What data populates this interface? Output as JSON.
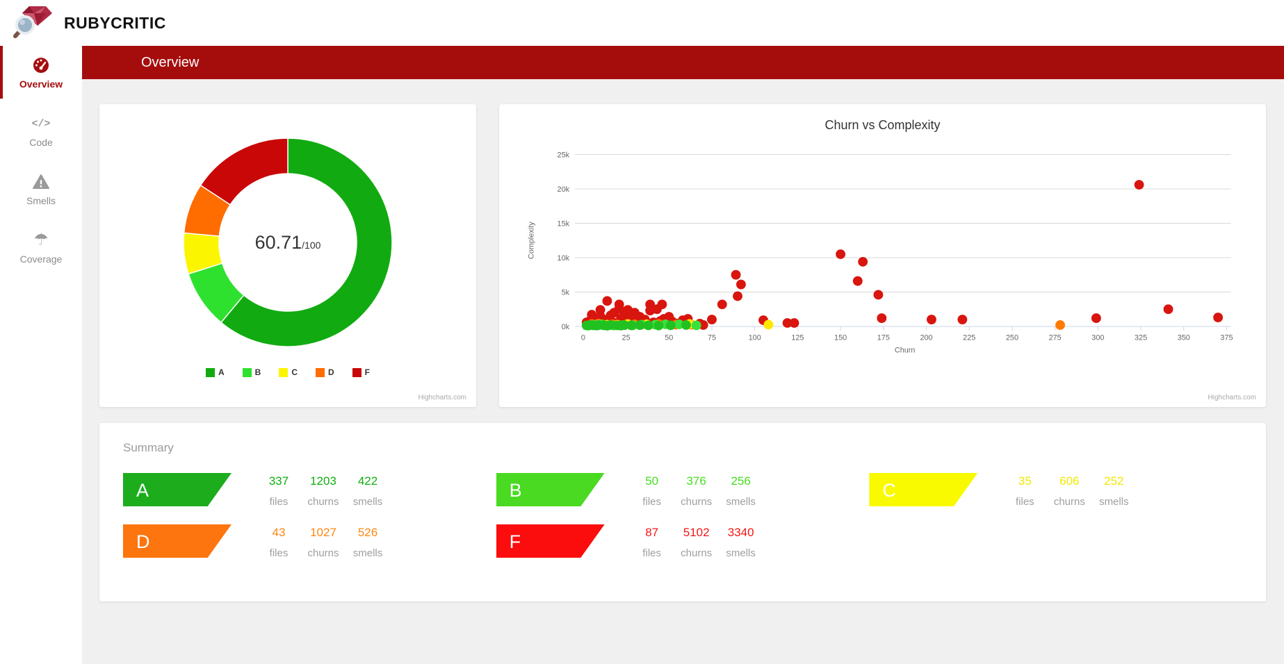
{
  "app": {
    "title": "RUBYCRITIC"
  },
  "banner": {
    "title": "Overview"
  },
  "sidebar": {
    "items": [
      {
        "label": "Overview",
        "icon": "gauge-icon",
        "active": true
      },
      {
        "label": "Code",
        "icon": "code-icon",
        "active": false
      },
      {
        "label": "Smells",
        "icon": "warning-icon",
        "active": false
      },
      {
        "label": "Coverage",
        "icon": "umbrella-icon",
        "active": false
      }
    ]
  },
  "score_card": {
    "score": "60.71",
    "denominator": "/100",
    "credit": "Highcharts.com"
  },
  "scatter_card": {
    "credit": "Highcharts.com"
  },
  "chart_data": [
    {
      "type": "pie",
      "title": "score donut",
      "center_label": "60.71/100",
      "legend_position": "bottom",
      "slices": [
        {
          "label": "A",
          "value": 337,
          "color": "#11ab11"
        },
        {
          "label": "B",
          "value": 50,
          "color": "#2fe12f"
        },
        {
          "label": "C",
          "value": 35,
          "color": "#fcf500"
        },
        {
          "label": "D",
          "value": 43,
          "color": "#ff6c00"
        },
        {
          "label": "F",
          "value": 87,
          "color": "#c90707"
        }
      ]
    },
    {
      "type": "scatter",
      "title": "Churn vs Complexity",
      "xlabel": "Churn",
      "ylabel": "Complexity",
      "xlim": [
        0,
        375
      ],
      "ylim": [
        0,
        25000
      ],
      "xticks": [
        0,
        25,
        50,
        75,
        100,
        125,
        150,
        175,
        200,
        225,
        250,
        275,
        300,
        325,
        350,
        375
      ],
      "yticks": [
        {
          "v": 0,
          "label": "0k"
        },
        {
          "v": 5000,
          "label": "5k"
        },
        {
          "v": 10000,
          "label": "10k"
        },
        {
          "v": 15000,
          "label": "15k"
        },
        {
          "v": 20000,
          "label": "20k"
        },
        {
          "v": 25000,
          "label": "25k"
        }
      ],
      "grid": "horizontal",
      "point_colors": {
        "a": "#21c121",
        "b": "#3ae13a",
        "c": "#ffe800",
        "d": "#ff7b00",
        "f": "#d8150e"
      },
      "points": [
        [
          324,
          20600,
          "f"
        ],
        [
          150,
          10500,
          "f"
        ],
        [
          163,
          9400,
          "f"
        ],
        [
          89,
          7500,
          "f"
        ],
        [
          92,
          6100,
          "f"
        ],
        [
          160,
          6600,
          "f"
        ],
        [
          172,
          4600,
          "f"
        ],
        [
          90,
          4400,
          "f"
        ],
        [
          81,
          3200,
          "f"
        ],
        [
          14,
          3700,
          "f"
        ],
        [
          21,
          3200,
          "f"
        ],
        [
          39,
          3200,
          "f"
        ],
        [
          46,
          3200,
          "f"
        ],
        [
          21,
          2600,
          "f"
        ],
        [
          43,
          2500,
          "f"
        ],
        [
          26,
          2400,
          "f"
        ],
        [
          10,
          2400,
          "f"
        ],
        [
          39,
          2300,
          "f"
        ],
        [
          18,
          2000,
          "f"
        ],
        [
          30,
          2000,
          "f"
        ],
        [
          24,
          1800,
          "f"
        ],
        [
          5,
          1700,
          "f"
        ],
        [
          16,
          1600,
          "f"
        ],
        [
          10,
          1500,
          "f"
        ],
        [
          33,
          1400,
          "f"
        ],
        [
          50,
          1400,
          "f"
        ],
        [
          22,
          1200,
          "f"
        ],
        [
          47,
          1100,
          "f"
        ],
        [
          28,
          1100,
          "f"
        ],
        [
          36,
          1000,
          "f"
        ],
        [
          12,
          1000,
          "f"
        ],
        [
          61,
          1100,
          "f"
        ],
        [
          75,
          1000,
          "f"
        ],
        [
          105,
          900,
          "f"
        ],
        [
          58,
          900,
          "f"
        ],
        [
          8,
          900,
          "f"
        ],
        [
          45,
          800,
          "f"
        ],
        [
          4,
          800,
          "f"
        ],
        [
          15,
          700,
          "f"
        ],
        [
          52,
          700,
          "f"
        ],
        [
          31,
          700,
          "f"
        ],
        [
          2,
          600,
          "f"
        ],
        [
          25,
          600,
          "f"
        ],
        [
          41,
          600,
          "f"
        ],
        [
          6,
          500,
          "f"
        ],
        [
          19,
          500,
          "f"
        ],
        [
          35,
          500,
          "f"
        ],
        [
          48,
          500,
          "f"
        ],
        [
          119,
          500,
          "f"
        ],
        [
          123,
          500,
          "f"
        ],
        [
          13,
          450,
          "f"
        ],
        [
          68,
          400,
          "f"
        ],
        [
          55,
          400,
          "f"
        ],
        [
          174,
          1200,
          "f"
        ],
        [
          203,
          1000,
          "f"
        ],
        [
          221,
          1000,
          "f"
        ],
        [
          299,
          1200,
          "f"
        ],
        [
          341,
          2500,
          "f"
        ],
        [
          370,
          1300,
          "f"
        ],
        [
          70,
          200,
          "f"
        ],
        [
          278,
          200,
          "d"
        ],
        [
          63,
          250,
          "d"
        ],
        [
          54,
          250,
          "d"
        ],
        [
          30,
          300,
          "d"
        ],
        [
          44,
          350,
          "d"
        ],
        [
          17,
          300,
          "d"
        ],
        [
          5,
          350,
          "d"
        ],
        [
          9,
          400,
          "d"
        ],
        [
          108,
          250,
          "c"
        ],
        [
          37,
          300,
          "c"
        ],
        [
          20,
          250,
          "c"
        ],
        [
          26,
          350,
          "c"
        ],
        [
          14,
          250,
          "c"
        ],
        [
          62,
          350,
          "c"
        ],
        [
          48,
          300,
          "b"
        ],
        [
          34,
          250,
          "b"
        ],
        [
          23,
          200,
          "b"
        ],
        [
          42,
          250,
          "b"
        ],
        [
          56,
          300,
          "b"
        ],
        [
          3,
          100,
          "b"
        ],
        [
          7,
          250,
          "b"
        ],
        [
          11,
          300,
          "b"
        ],
        [
          66,
          150,
          "b"
        ],
        [
          29,
          150,
          "b"
        ],
        [
          18,
          120,
          "b"
        ],
        [
          2,
          150,
          "a"
        ],
        [
          4,
          200,
          "a"
        ],
        [
          6,
          150,
          "a"
        ],
        [
          9,
          180,
          "a"
        ],
        [
          12,
          150,
          "a"
        ],
        [
          16,
          200,
          "a"
        ],
        [
          20,
          150,
          "a"
        ],
        [
          24,
          180,
          "a"
        ],
        [
          28,
          150,
          "a"
        ],
        [
          33,
          180,
          "a"
        ],
        [
          60,
          200,
          "a"
        ],
        [
          38,
          150,
          "a"
        ],
        [
          44,
          130,
          "a"
        ],
        [
          51,
          160,
          "a"
        ],
        [
          8,
          120,
          "a"
        ],
        [
          14,
          100,
          "a"
        ],
        [
          22,
          110,
          "a"
        ]
      ]
    }
  ],
  "summary": {
    "heading": "Summary",
    "stat_labels": [
      "files",
      "churns",
      "smells"
    ],
    "grades": [
      {
        "grade": "A",
        "badge_color": "#1cac1c",
        "number_color": "#0fae0f",
        "files": 337,
        "churns": 1203,
        "smells": 422
      },
      {
        "grade": "B",
        "badge_color": "#49da21",
        "number_color": "#45dd1d",
        "files": 50,
        "churns": 376,
        "smells": 256
      },
      {
        "grade": "C",
        "badge_color": "#f9f900",
        "number_color": "#f0e800",
        "files": 35,
        "churns": 606,
        "smells": 252
      },
      {
        "grade": "D",
        "badge_color": "#fd750e",
        "number_color": "#fd8711",
        "files": 43,
        "churns": 1027,
        "smells": 526
      },
      {
        "grade": "F",
        "badge_color": "#fb0d0d",
        "number_color": "#f41414",
        "files": 87,
        "churns": 5102,
        "smells": 3340
      }
    ]
  }
}
